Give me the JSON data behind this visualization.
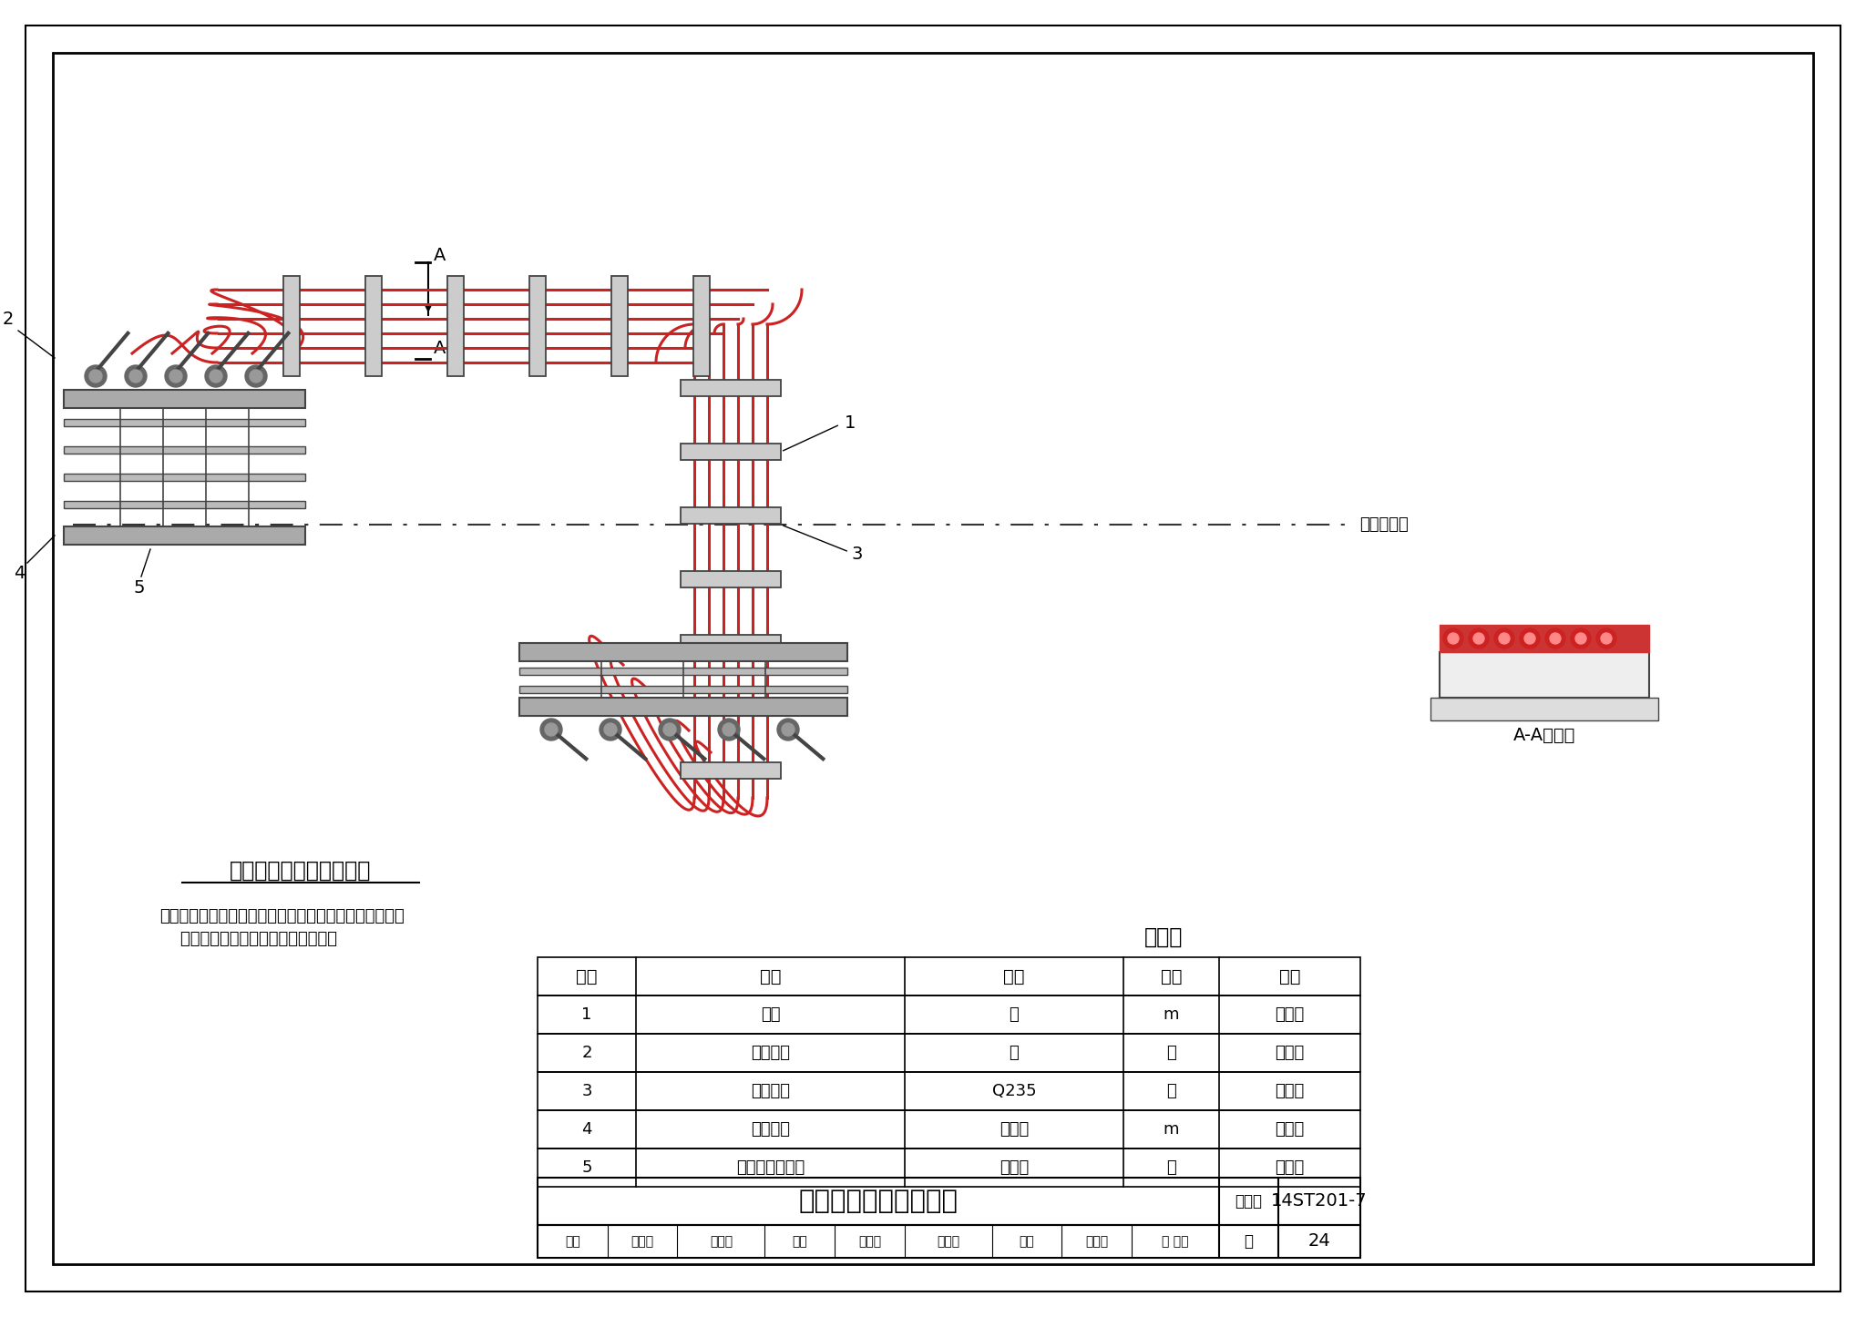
{
  "title": "上接触式电连接安装图",
  "figure_collection": "14ST201-7",
  "page": "24",
  "top_label": "接触轨间电缆连接俯视图",
  "note_line1": "注：电连接与接触轨连接牢固可靠，电缆排列整齐、固定",
  "note_line2": "    牢固，标志牌字迹清晰、挂装牢靠。",
  "center_line_label": "线路中心线",
  "section_label": "A-A剖面图",
  "table_title": "材料表",
  "table_headers": [
    "序号",
    "名称",
    "材料",
    "单位",
    "数量"
  ],
  "table_rows": [
    [
      "1",
      "电缆",
      "铜",
      "m",
      "按设计"
    ],
    [
      "2",
      "接线端子",
      "铜",
      "个",
      "按设计"
    ],
    [
      "3",
      "固定支架",
      "Q235",
      "套",
      "按设计"
    ],
    [
      "4",
      "电连接板",
      "铜、铝",
      "m",
      "按设计"
    ],
    [
      "5",
      "钢铝复合接触轨",
      "钢、铝",
      "套",
      "按设计"
    ]
  ],
  "sig_cells": [
    "审核",
    "葛义飞",
    "高乙乃",
    "校对",
    "蔡志刚",
    "蔡名刚",
    "设计",
    "孙庆庆",
    "社 双双"
  ],
  "bg_color": "#ffffff",
  "rail_color": "#cc2222",
  "struct_color": "#444444",
  "bracket_fill": "#cccccc",
  "n_cables": 6,
  "cable_lw": 2.2,
  "struct_lw": 1.5
}
